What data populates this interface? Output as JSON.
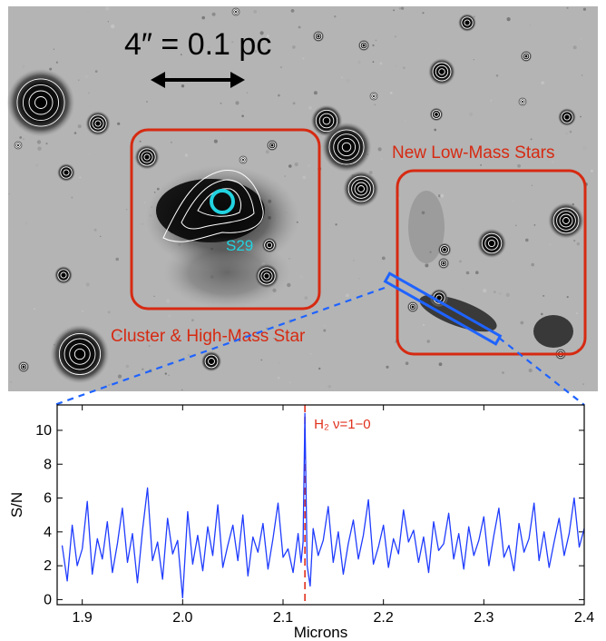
{
  "image_panel": {
    "scale_label": "4″ = 0.1 pc",
    "box_left_label": "Cluster & High-Mass Star",
    "box_right_label": "New Low-Mass Stars",
    "source_label": "S29",
    "colors": {
      "box": "#d62a12",
      "marker": "#22d3e0",
      "slit": "#1f63ff"
    }
  },
  "chart_data": {
    "type": "line",
    "xlabel": "Microns",
    "ylabel": "S/N",
    "xlim": [
      1.875,
      2.4
    ],
    "ylim": [
      -0.3,
      11.5
    ],
    "xticks": [
      1.9,
      2.0,
      2.1,
      2.2,
      2.3,
      2.4
    ],
    "yticks": [
      0,
      2,
      4,
      6,
      8,
      10
    ],
    "line_color": "#1f3cff",
    "annotation": {
      "text": "H₂ ν=1−0",
      "x": 2.1218,
      "color": "#e0301c"
    },
    "series": [
      {
        "x": [
          1.88,
          1.885,
          1.89,
          1.895,
          1.9,
          1.905,
          1.91,
          1.915,
          1.92,
          1.925,
          1.93,
          1.935,
          1.94,
          1.945,
          1.95,
          1.955,
          1.96,
          1.965,
          1.97,
          1.975,
          1.98,
          1.985,
          1.99,
          1.995,
          2.0,
          2.005,
          2.01,
          2.015,
          2.02,
          2.025,
          2.03,
          2.035,
          2.04,
          2.045,
          2.05,
          2.055,
          2.06,
          2.065,
          2.07,
          2.075,
          2.08,
          2.085,
          2.09,
          2.095,
          2.1,
          2.105,
          2.11,
          2.115,
          2.118,
          2.12,
          2.1218,
          2.124,
          2.127,
          2.13,
          2.135,
          2.14,
          2.145,
          2.15,
          2.155,
          2.16,
          2.165,
          2.17,
          2.175,
          2.18,
          2.185,
          2.19,
          2.195,
          2.2,
          2.205,
          2.21,
          2.215,
          2.22,
          2.225,
          2.23,
          2.235,
          2.24,
          2.245,
          2.25,
          2.255,
          2.26,
          2.265,
          2.27,
          2.275,
          2.28,
          2.285,
          2.29,
          2.295,
          2.3,
          2.305,
          2.31,
          2.315,
          2.32,
          2.325,
          2.33,
          2.335,
          2.34,
          2.345,
          2.35,
          2.355,
          2.36,
          2.365,
          2.37,
          2.375,
          2.38,
          2.385,
          2.39,
          2.395,
          2.4
        ],
        "values": [
          3.2,
          1.1,
          4.4,
          2.0,
          3.0,
          5.8,
          1.5,
          3.6,
          2.4,
          4.6,
          1.6,
          3.3,
          5.4,
          2.2,
          3.9,
          1.0,
          4.1,
          6.6,
          2.3,
          3.4,
          1.2,
          4.8,
          2.7,
          3.5,
          0.1,
          5.2,
          2.1,
          3.8,
          1.7,
          4.3,
          2.6,
          5.6,
          1.9,
          3.2,
          4.4,
          2.3,
          5.0,
          1.4,
          3.7,
          2.8,
          4.5,
          1.8,
          3.6,
          5.7,
          2.5,
          3.0,
          1.6,
          3.9,
          2.2,
          3.4,
          11.0,
          2.0,
          0.8,
          4.2,
          2.6,
          3.5,
          5.5,
          2.2,
          4.0,
          1.5,
          3.3,
          4.7,
          2.4,
          3.8,
          5.9,
          2.1,
          3.1,
          4.4,
          1.9,
          3.6,
          2.7,
          5.3,
          3.4,
          4.1,
          2.2,
          3.7,
          1.6,
          4.6,
          2.9,
          3.3,
          5.1,
          2.4,
          3.9,
          1.8,
          4.3,
          2.6,
          3.5,
          4.9,
          2.0,
          3.8,
          5.4,
          2.5,
          3.2,
          1.7,
          4.5,
          2.8,
          3.6,
          5.7,
          2.3,
          4.0,
          1.9,
          3.4,
          4.8,
          2.6,
          3.9,
          6.0,
          3.1,
          4.2
        ]
      }
    ]
  }
}
